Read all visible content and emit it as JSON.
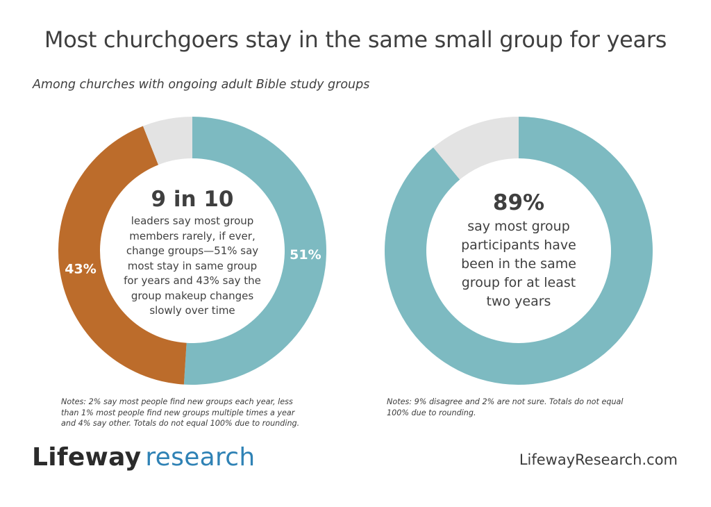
{
  "title": "Most churchgoers stay in the same small group for years",
  "subtitle": "Among churches with ongoing adult Bible study groups",
  "colors": {
    "teal": "#7dbac1",
    "orange": "#bc6c2b",
    "gray": "#e3e3e3"
  },
  "chart_data": [
    {
      "type": "pie",
      "variant": "donut",
      "slices": [
        {
          "value": 51,
          "label": "51%",
          "color": "#7dbac1"
        },
        {
          "value": 43,
          "label": "43%",
          "color": "#bc6c2b"
        },
        {
          "value": 6,
          "label": "",
          "color": "#e3e3e3"
        }
      ],
      "center_big": "9 in 10",
      "center_text": [
        "leaders say most group",
        "members rarely, if ever,",
        "change groups—51% say",
        "most stay in same group",
        "for years and 43% say the",
        "group makeup changes",
        "slowly over time"
      ],
      "notes": [
        "Notes: 2% say most people find new groups each year, less",
        "than 1% most people find new groups multiple times a year",
        "and 4% say other. Totals do not equal 100% due to rounding."
      ]
    },
    {
      "type": "pie",
      "variant": "donut",
      "slices": [
        {
          "value": 89,
          "label": "",
          "color": "#7dbac1"
        },
        {
          "value": 11,
          "label": "",
          "color": "#e3e3e3"
        }
      ],
      "center_big": "89%",
      "center_text": [
        "say most group",
        "participants have",
        "been in the same",
        "group for at least",
        "two years"
      ],
      "notes": [
        "Notes: 9% disagree and 2% are not sure. Totals do not equal",
        "100% due to rounding."
      ]
    }
  ],
  "footer": {
    "logo_part1": "Lifeway",
    "logo_part2": "research",
    "url": "LifewayResearch.com"
  }
}
